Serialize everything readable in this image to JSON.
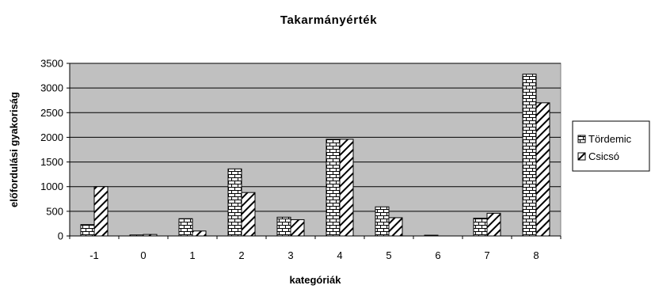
{
  "chart_data": {
    "type": "bar",
    "title": "Takarmányérték",
    "xlabel": "kategóriák",
    "ylabel": "előfordulási gyakoriság",
    "categories": [
      "-1",
      "0",
      "1",
      "2",
      "3",
      "4",
      "5",
      "6",
      "7",
      "8"
    ],
    "series": [
      {
        "name": "Tördemic",
        "values": [
          230,
          20,
          350,
          1360,
          380,
          1960,
          590,
          15,
          360,
          3280
        ]
      },
      {
        "name": "Csicsó",
        "values": [
          1000,
          30,
          100,
          880,
          330,
          1960,
          370,
          0,
          460,
          2700
        ]
      }
    ],
    "ylim": [
      0,
      3500
    ],
    "yticks": [
      0,
      500,
      1000,
      1500,
      2000,
      2500,
      3000,
      3500
    ],
    "ytick_labels": [
      "0",
      "500",
      "1000",
      "1500",
      "2000",
      "2500",
      "3000",
      "3500"
    ],
    "grid": true,
    "legend_position": "right",
    "colors": {
      "plot_background": "#c0c0c0",
      "bar_fill": "#ffffff",
      "bar_pattern": "#000000",
      "gridline": "#000000"
    }
  }
}
